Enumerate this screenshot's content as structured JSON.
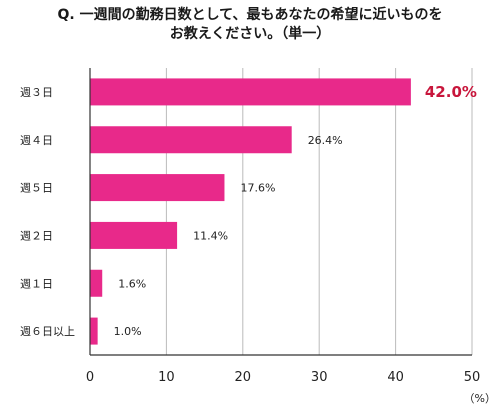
{
  "title": {
    "line1": "Q. 一週間の勤務日数として、最もあなたの希望に近いものを",
    "line2": "お教えください。（単一）"
  },
  "chart_data": {
    "type": "bar",
    "orientation": "horizontal",
    "categories": [
      "週３日",
      "週４日",
      "週５日",
      "週２日",
      "週１日",
      "週６日以上"
    ],
    "values": [
      42.0,
      26.4,
      17.6,
      11.4,
      1.6,
      1.0
    ],
    "value_labels": [
      "42.0%",
      "26.4%",
      "17.6%",
      "11.4%",
      "1.6%",
      "1.0%"
    ],
    "highlight_index": 0,
    "xlim": [
      0,
      50
    ],
    "xticks": [
      "0",
      "10",
      "20",
      "30",
      "40",
      "50"
    ],
    "unit_label": "（%）",
    "grid": "vertical",
    "colors": {
      "bar": "#e8298a",
      "highlight_label": "#c8163c",
      "grid": "#bbbbbb",
      "axis": "#333333"
    }
  }
}
